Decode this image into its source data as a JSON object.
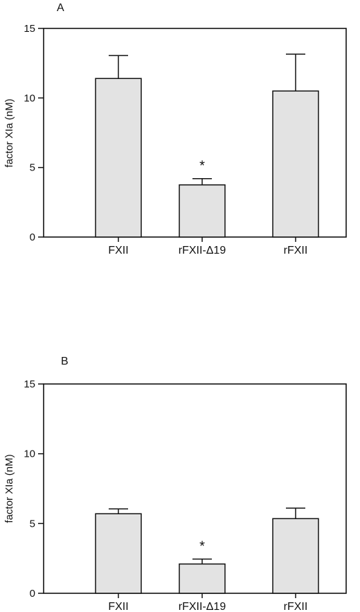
{
  "chart_data": [
    {
      "type": "bar",
      "panel_label": "A",
      "categories": [
        "FXII",
        "rFXII-Δ19",
        "rFXII"
      ],
      "values": [
        11.4,
        3.75,
        10.5
      ],
      "error_upper": [
        13.05,
        4.2,
        13.15
      ],
      "annotations": [
        "",
        "*",
        ""
      ],
      "ylabel": "factor XIa (nM)",
      "xlabel": "",
      "ylim": [
        0,
        15
      ],
      "yticks": [
        0,
        5,
        10,
        15
      ],
      "bar_color": "#e3e3e3",
      "grid": false
    },
    {
      "type": "bar",
      "panel_label": "B",
      "categories": [
        "FXII",
        "rFXII-Δ19",
        "rFXII"
      ],
      "values": [
        5.7,
        2.1,
        5.35
      ],
      "error_upper": [
        6.05,
        2.45,
        6.1
      ],
      "annotations": [
        "",
        "*",
        ""
      ],
      "ylabel": "factor XIa (nM)",
      "xlabel": "",
      "ylim": [
        0,
        15
      ],
      "yticks": [
        0,
        5,
        10,
        15
      ],
      "bar_color": "#e3e3e3",
      "grid": false
    }
  ]
}
